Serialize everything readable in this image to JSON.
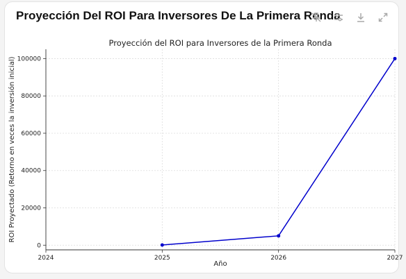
{
  "card": {
    "title": "Proyección Del ROI Para Inversores De La Primera Ronda",
    "toolbar": [
      {
        "name": "pin-icon"
      },
      {
        "name": "sliders-icon"
      },
      {
        "name": "download-icon"
      },
      {
        "name": "expand-icon"
      }
    ]
  },
  "chart_data": {
    "type": "line",
    "title": "Proyección del ROI para Inversores de la Primera Ronda",
    "xlabel": "Año",
    "ylabel": "ROI Proyectado (Retorno en veces la inversión inicial)",
    "x": [
      2025,
      2026,
      2027
    ],
    "series": [
      {
        "values": [
          100,
          5000,
          100000
        ],
        "color": "#0000cc"
      }
    ],
    "xlim": [
      2024,
      2027
    ],
    "ylim": [
      -2500,
      105000
    ],
    "xticks": [
      "2024",
      "2025",
      "2026",
      "2027"
    ],
    "yticks": [
      "0",
      "20000",
      "40000",
      "60000",
      "80000",
      "100000"
    ],
    "grid": true
  }
}
